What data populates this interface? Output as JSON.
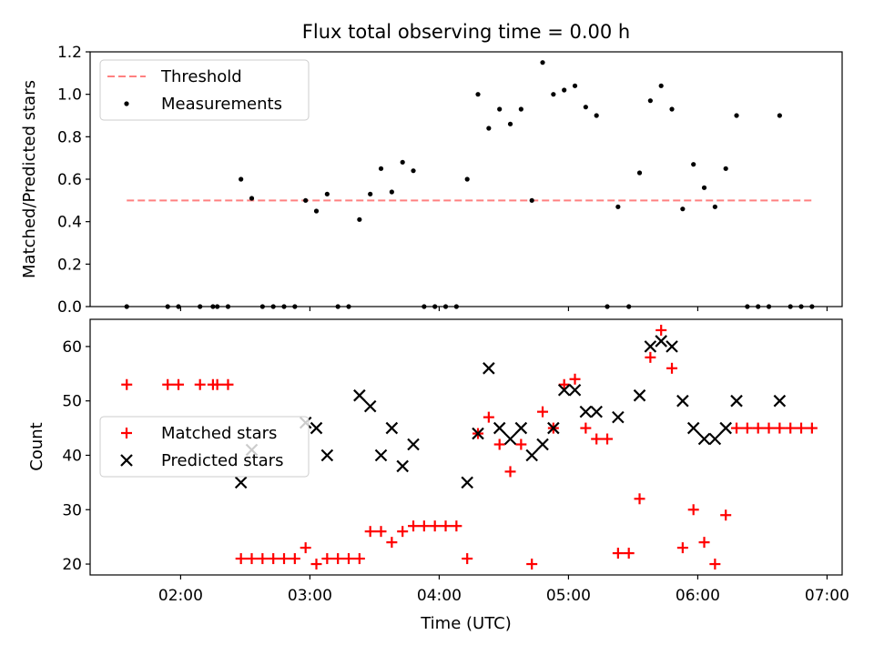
{
  "chart_data": [
    {
      "type": "scatter",
      "title": "Flux total observing time = 0.00 h",
      "xlabel": "",
      "ylabel": "Matched/Predicted stars",
      "xlim": [
        "01:18",
        "07:07"
      ],
      "ylim": [
        0,
        1.2
      ],
      "y_ticks": [
        "0.0",
        "0.2",
        "0.4",
        "0.6",
        "0.8",
        "1.0",
        "1.2"
      ],
      "legend": {
        "placement": "top-left",
        "entries": [
          "Threshold",
          "Measurements"
        ]
      },
      "threshold": {
        "name": "Threshold",
        "style": "dashed",
        "color": "#ff8080",
        "x": [
          "01:35",
          "06:53"
        ],
        "y": 0.5
      },
      "measurements": {
        "name": "Measurements",
        "color": "#000000",
        "points": [
          [
            "01:35",
            0.0
          ],
          [
            "01:54",
            0.0
          ],
          [
            "01:59",
            0.0
          ],
          [
            "02:09",
            0.0
          ],
          [
            "02:15",
            0.0
          ],
          [
            "02:17",
            0.0
          ],
          [
            "02:22",
            0.0
          ],
          [
            "02:28",
            0.6
          ],
          [
            "02:33",
            0.51
          ],
          [
            "02:38",
            0.0
          ],
          [
            "02:43",
            0.0
          ],
          [
            "02:48",
            0.0
          ],
          [
            "02:53",
            0.0
          ],
          [
            "02:58",
            0.5
          ],
          [
            "03:03",
            0.45
          ],
          [
            "03:08",
            0.53
          ],
          [
            "03:13",
            0.0
          ],
          [
            "03:18",
            0.0
          ],
          [
            "03:23",
            0.41
          ],
          [
            "03:28",
            0.53
          ],
          [
            "03:33",
            0.65
          ],
          [
            "03:38",
            0.54
          ],
          [
            "03:43",
            0.68
          ],
          [
            "03:48",
            0.64
          ],
          [
            "03:53",
            0.0
          ],
          [
            "03:58",
            0.0
          ],
          [
            "04:03",
            0.0
          ],
          [
            "04:08",
            0.0
          ],
          [
            "04:13",
            0.6
          ],
          [
            "04:18",
            1.0
          ],
          [
            "04:23",
            0.84
          ],
          [
            "04:28",
            0.93
          ],
          [
            "04:33",
            0.86
          ],
          [
            "04:38",
            0.93
          ],
          [
            "04:43",
            0.5
          ],
          [
            "04:48",
            1.15
          ],
          [
            "04:53",
            1.0
          ],
          [
            "04:58",
            1.02
          ],
          [
            "05:03",
            1.04
          ],
          [
            "05:08",
            0.94
          ],
          [
            "05:13",
            0.9
          ],
          [
            "05:18",
            0.0
          ],
          [
            "05:23",
            0.47
          ],
          [
            "05:28",
            0.0
          ],
          [
            "05:33",
            0.63
          ],
          [
            "05:38",
            0.97
          ],
          [
            "05:43",
            1.04
          ],
          [
            "05:48",
            0.93
          ],
          [
            "05:53",
            0.46
          ],
          [
            "05:58",
            0.67
          ],
          [
            "06:03",
            0.56
          ],
          [
            "06:08",
            0.47
          ],
          [
            "06:13",
            0.65
          ],
          [
            "06:18",
            0.9
          ],
          [
            "06:23",
            0.0
          ],
          [
            "06:28",
            0.0
          ],
          [
            "06:33",
            0.0
          ],
          [
            "06:38",
            0.9
          ],
          [
            "06:43",
            0.0
          ],
          [
            "06:48",
            0.0
          ],
          [
            "06:53",
            0.0
          ]
        ]
      }
    },
    {
      "type": "scatter",
      "title": "",
      "xlabel": "Time (UTC)",
      "ylabel": "Count",
      "xlim": [
        "01:18",
        "07:07"
      ],
      "ylim": [
        18,
        65
      ],
      "y_ticks": [
        "20",
        "30",
        "40",
        "50",
        "60"
      ],
      "x_ticks": [
        "02:00",
        "03:00",
        "04:00",
        "05:00",
        "06:00",
        "07:00"
      ],
      "legend": {
        "placement": "center-left",
        "entries": [
          "Matched stars",
          "Predicted stars"
        ]
      },
      "matched": {
        "name": "Matched stars",
        "color": "#ff0000",
        "marker": "plus",
        "points": [
          [
            "01:35",
            53
          ],
          [
            "01:54",
            53
          ],
          [
            "01:59",
            53
          ],
          [
            "02:09",
            53
          ],
          [
            "02:15",
            53
          ],
          [
            "02:17",
            53
          ],
          [
            "02:22",
            53
          ],
          [
            "02:28",
            21
          ],
          [
            "02:33",
            21
          ],
          [
            "02:38",
            21
          ],
          [
            "02:43",
            21
          ],
          [
            "02:48",
            21
          ],
          [
            "02:53",
            21
          ],
          [
            "02:58",
            23
          ],
          [
            "03:03",
            20
          ],
          [
            "03:08",
            21
          ],
          [
            "03:13",
            21
          ],
          [
            "03:18",
            21
          ],
          [
            "03:23",
            21
          ],
          [
            "03:28",
            26
          ],
          [
            "03:33",
            26
          ],
          [
            "03:38",
            24
          ],
          [
            "03:43",
            26
          ],
          [
            "03:48",
            27
          ],
          [
            "03:53",
            27
          ],
          [
            "03:58",
            27
          ],
          [
            "04:03",
            27
          ],
          [
            "04:08",
            27
          ],
          [
            "04:13",
            21
          ],
          [
            "04:18",
            44
          ],
          [
            "04:23",
            47
          ],
          [
            "04:28",
            42
          ],
          [
            "04:33",
            37
          ],
          [
            "04:38",
            42
          ],
          [
            "04:43",
            20
          ],
          [
            "04:48",
            48
          ],
          [
            "04:53",
            45
          ],
          [
            "04:58",
            53
          ],
          [
            "05:03",
            54
          ],
          [
            "05:08",
            45
          ],
          [
            "05:13",
            43
          ],
          [
            "05:18",
            43
          ],
          [
            "05:23",
            22
          ],
          [
            "05:28",
            22
          ],
          [
            "05:33",
            32
          ],
          [
            "05:38",
            58
          ],
          [
            "05:43",
            63
          ],
          [
            "05:48",
            56
          ],
          [
            "05:53",
            23
          ],
          [
            "05:58",
            30
          ],
          [
            "06:03",
            24
          ],
          [
            "06:08",
            20
          ],
          [
            "06:13",
            29
          ],
          [
            "06:18",
            45
          ],
          [
            "06:23",
            45
          ],
          [
            "06:28",
            45
          ],
          [
            "06:33",
            45
          ],
          [
            "06:38",
            45
          ],
          [
            "06:43",
            45
          ],
          [
            "06:48",
            45
          ],
          [
            "06:53",
            45
          ]
        ]
      },
      "predicted": {
        "name": "Predicted stars",
        "color": "#000000",
        "marker": "x",
        "points": [
          [
            "02:28",
            35
          ],
          [
            "02:33",
            41
          ],
          [
            "02:58",
            46
          ],
          [
            "03:03",
            45
          ],
          [
            "03:08",
            40
          ],
          [
            "03:23",
            51
          ],
          [
            "03:28",
            49
          ],
          [
            "03:33",
            40
          ],
          [
            "03:38",
            45
          ],
          [
            "03:43",
            38
          ],
          [
            "03:48",
            42
          ],
          [
            "04:13",
            35
          ],
          [
            "04:18",
            44
          ],
          [
            "04:23",
            56
          ],
          [
            "04:28",
            45
          ],
          [
            "04:33",
            43
          ],
          [
            "04:38",
            45
          ],
          [
            "04:43",
            40
          ],
          [
            "04:48",
            42
          ],
          [
            "04:53",
            45
          ],
          [
            "04:58",
            52
          ],
          [
            "05:03",
            52
          ],
          [
            "05:08",
            48
          ],
          [
            "05:13",
            48
          ],
          [
            "05:23",
            47
          ],
          [
            "05:33",
            51
          ],
          [
            "05:38",
            60
          ],
          [
            "05:43",
            61
          ],
          [
            "05:48",
            60
          ],
          [
            "05:53",
            50
          ],
          [
            "05:58",
            45
          ],
          [
            "06:03",
            43
          ],
          [
            "06:08",
            43
          ],
          [
            "06:13",
            45
          ],
          [
            "06:18",
            50
          ],
          [
            "06:38",
            50
          ]
        ]
      }
    }
  ]
}
